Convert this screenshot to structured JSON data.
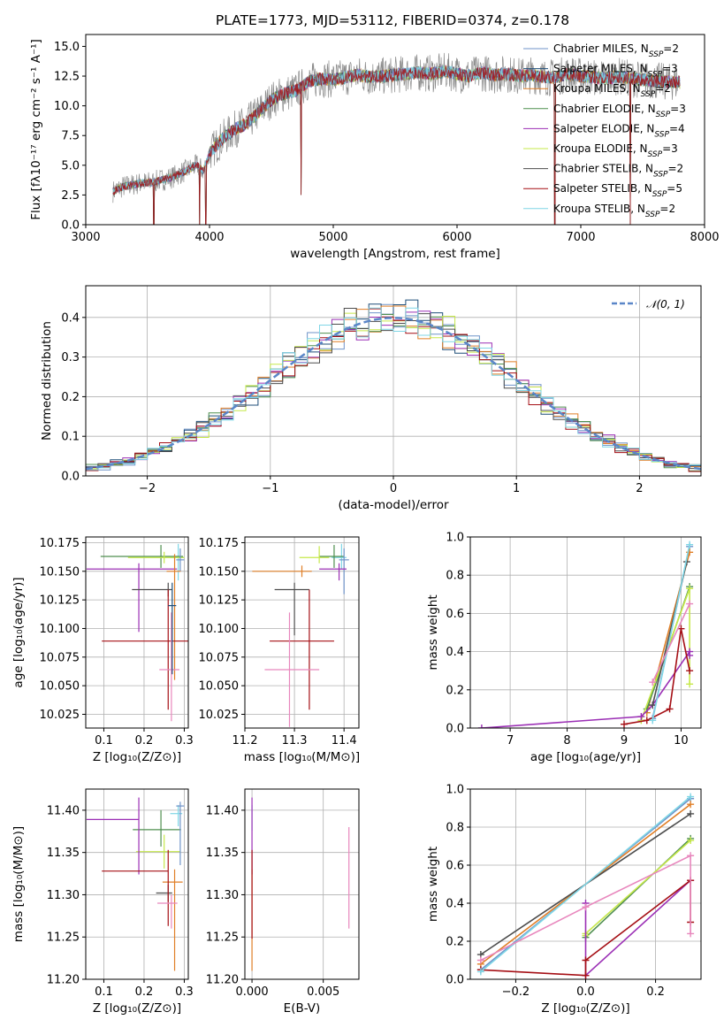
{
  "title": "PLATE=1773, MJD=53112, FIBERID=0374, z=0.178",
  "colors": {
    "Chabrier MILES": "#6f93c9",
    "Salpeter MILES": "#1f4e79",
    "Kroupa MILES": "#e07f27",
    "Chabrier ELODIE": "#4f8f4f",
    "Salpeter ELODIE": "#9b2fb5",
    "Kroupa ELODIE": "#c6e84a",
    "Chabrier STELIB": "#4d4d4d",
    "Salpeter STELIB": "#a50f15",
    "Kroupa STELIB": "#7fd6e6",
    "extra_pink": "#e887bd",
    "normal_curve": "#5a86c8",
    "data_spectrum": "#808080"
  },
  "chart_data": [
    {
      "id": "spectrum",
      "type": "line",
      "title": "PLATE=1773, MJD=53112, FIBERID=0374, z=0.178",
      "xlabel": "wavelength [Angstrom, rest frame]",
      "ylabel": "Flux [fλ10⁻¹⁷ erg cm⁻² s⁻¹ A⁻¹]",
      "xlim": [
        3000,
        8000
      ],
      "ylim": [
        0,
        16
      ],
      "xticks": [
        "3000",
        "4000",
        "5000",
        "6000",
        "7000",
        "8000"
      ],
      "yticks": [
        "0.0",
        "2.5",
        "5.0",
        "7.5",
        "10.0",
        "12.5",
        "15.0"
      ],
      "legend_position": "upper right",
      "legend": [
        {
          "label": "Chabrier MILES, N_SSP=2",
          "color": "Chabrier MILES"
        },
        {
          "label": "Salpeter MILES, N_SSP=3",
          "color": "Salpeter MILES"
        },
        {
          "label": "Kroupa MILES, N_SSP=2",
          "color": "Kroupa MILES"
        },
        {
          "label": "Chabrier ELODIE, N_SSP=3",
          "color": "Chabrier ELODIE"
        },
        {
          "label": "Salpeter ELODIE, N_SSP=4",
          "color": "Salpeter ELODIE"
        },
        {
          "label": "Kroupa ELODIE, N_SSP=3",
          "color": "Kroupa ELODIE"
        },
        {
          "label": "Chabrier STELIB, N_SSP=2",
          "color": "Chabrier STELIB"
        },
        {
          "label": "Salpeter STELIB, N_SSP=5",
          "color": "Salpeter STELIB"
        },
        {
          "label": "Kroupa STELIB, N_SSP=2",
          "color": "Kroupa STELIB"
        }
      ],
      "continuum": {
        "x": [
          3220,
          3300,
          3450,
          3550,
          3700,
          3800,
          3900,
          3950,
          4000,
          4100,
          4200,
          4300,
          4400,
          4500,
          4600,
          4700,
          4800,
          4900,
          5000,
          5100,
          5200,
          5300,
          5400,
          5500,
          5600,
          5700,
          5800,
          5900,
          6000,
          6100,
          6200,
          6300,
          6400,
          6500,
          6600,
          6700,
          6800,
          6900,
          7000,
          7100,
          7200,
          7300,
          7400,
          7500,
          7600,
          7700,
          7800
        ],
        "y": [
          2.8,
          3.2,
          3.5,
          3.6,
          4.0,
          4.5,
          5.0,
          4.5,
          6.0,
          7.2,
          8.0,
          8.5,
          9.5,
          10.5,
          11.0,
          11.3,
          12.0,
          12.3,
          12.2,
          12.4,
          12.6,
          12.4,
          12.5,
          12.6,
          12.7,
          12.8,
          12.7,
          12.9,
          12.7,
          12.5,
          12.8,
          12.6,
          12.7,
          12.5,
          12.6,
          12.4,
          12.4,
          12.7,
          12.5,
          12.4,
          12.3,
          12.5,
          12.3,
          12.2,
          12.1,
          12.0,
          12.0
        ]
      },
      "absorption_dips": [
        {
          "x": 3550,
          "y": 0.0
        },
        {
          "x": 3920,
          "y": 0.0
        },
        {
          "x": 3970,
          "y": 0.0
        },
        {
          "x": 4740,
          "y": 2.5
        },
        {
          "x": 6790,
          "y": 0.0
        },
        {
          "x": 7400,
          "y": 0.0
        }
      ]
    },
    {
      "id": "residuals",
      "type": "line",
      "xlabel": "(data-model)/error",
      "ylabel": "Normed distribution",
      "xlim": [
        -2.5,
        2.5
      ],
      "ylim": [
        0,
        0.48
      ],
      "xticks": [
        "−2",
        "−1",
        "0",
        "1",
        "2"
      ],
      "yticks": [
        "0.0",
        "0.1",
        "0.2",
        "0.3",
        "0.4"
      ],
      "legend_position": "upper right",
      "legend": [
        {
          "label": "𝒩(0, 1)",
          "color": "normal_curve"
        }
      ],
      "bin_width": 0.1,
      "curve": "normal pdf, mean 0, sd 1"
    },
    {
      "id": "age-vs-Z",
      "type": "scatter",
      "xlabel": "Z [log₁₀(Z/Z⊙)]",
      "ylabel": "age  [log₁₀(age/yr)]",
      "xlim": [
        0.055,
        0.31
      ],
      "ylim": [
        10.013,
        10.18
      ],
      "xticks": [
        "0.1",
        "0.2",
        "0.3"
      ],
      "yticks": [
        "10.025",
        "10.050",
        "10.075",
        "10.100",
        "10.125",
        "10.150",
        "10.175"
      ],
      "points": [
        {
          "series": "Kroupa STELIB",
          "x": 0.285,
          "y": 10.162,
          "xerr": [
            0.02,
            0.015
          ],
          "yerr": [
            0.02,
            0.012
          ]
        },
        {
          "series": "Chabrier ELODIE",
          "x": 0.242,
          "y": 10.163,
          "xerr": [
            0.15,
            0.055
          ],
          "yerr": [
            0.01,
            0.01
          ]
        },
        {
          "series": "Kroupa ELODIE",
          "x": 0.25,
          "y": 10.162,
          "xerr": [
            0.09,
            0.05
          ],
          "yerr": [
            0.005,
            0.005
          ]
        },
        {
          "series": "Chabrier MILES",
          "x": 0.29,
          "y": 10.16,
          "xerr": [
            0.01,
            0.01
          ],
          "yerr": [
            0.01,
            0.01
          ]
        },
        {
          "series": "Salpeter ELODIE",
          "x": 0.187,
          "y": 10.152,
          "xerr": [
            0.13,
            0.095
          ],
          "yerr": [
            0.055,
            0.005
          ]
        },
        {
          "series": "Kroupa MILES",
          "x": 0.276,
          "y": 10.15,
          "xerr": [
            0.02,
            0.015
          ],
          "yerr": [
            0.095,
            0.015
          ]
        },
        {
          "series": "Chabrier STELIB",
          "x": 0.26,
          "y": 10.134,
          "xerr": [
            0.09,
            0.01
          ],
          "yerr": [
            0.006,
            0.006
          ]
        },
        {
          "series": "Salpeter STELIB",
          "x": 0.26,
          "y": 10.089,
          "xerr": [
            0.165,
            0.06
          ],
          "yerr": [
            0.06,
            0.045
          ]
        },
        {
          "series": "extra_pink",
          "x": 0.268,
          "y": 10.064,
          "xerr": [
            0.03,
            0.02
          ],
          "yerr": [
            0.045,
            0.05
          ]
        },
        {
          "series": "Salpeter MILES",
          "x": 0.27,
          "y": 10.12,
          "xerr": [
            0.01,
            0.01
          ],
          "yerr": [
            0.06,
            0.02
          ]
        }
      ]
    },
    {
      "id": "age-vs-mass",
      "type": "scatter",
      "xlabel": "mass [log₁₀(M/M⊙)]",
      "xlim": [
        11.2,
        11.43
      ],
      "ylim": [
        10.013,
        10.18
      ],
      "xticks": [
        "11.2",
        "11.3",
        "11.4"
      ],
      "yticks": [
        "10.025",
        "10.050",
        "10.075",
        "10.100",
        "10.125",
        "10.150",
        "10.175"
      ],
      "points": [
        {
          "series": "Kroupa STELIB",
          "x": 11.395,
          "y": 10.162,
          "xerr": [
            0.02,
            0.01
          ],
          "yerr": [
            0.01,
            0.012
          ]
        },
        {
          "series": "Chabrier ELODIE",
          "x": 11.38,
          "y": 10.163,
          "xerr": [
            0.03,
            0.02
          ],
          "yerr": [
            0.01,
            0.01
          ]
        },
        {
          "series": "Kroupa ELODIE",
          "x": 11.35,
          "y": 10.162,
          "xerr": [
            0.04,
            0.02
          ],
          "yerr": [
            0.005,
            0.01
          ]
        },
        {
          "series": "Chabrier MILES",
          "x": 11.4,
          "y": 10.16,
          "xerr": [
            0.01,
            0.01
          ],
          "yerr": [
            0.03,
            0.01
          ]
        },
        {
          "series": "Salpeter ELODIE",
          "x": 11.39,
          "y": 10.152,
          "xerr": [
            0.04,
            0.015
          ],
          "yerr": [
            0.01,
            0.005
          ]
        },
        {
          "series": "Kroupa MILES",
          "x": 11.315,
          "y": 10.15,
          "xerr": [
            0.1,
            0.02
          ],
          "yerr": [
            0.005,
            0.005
          ]
        },
        {
          "series": "Chabrier STELIB",
          "x": 11.3,
          "y": 10.134,
          "xerr": [
            0.04,
            0.03
          ],
          "yerr": [
            0.04,
            0.006
          ]
        },
        {
          "series": "Salpeter STELIB",
          "x": 11.33,
          "y": 10.089,
          "xerr": [
            0.08,
            0.05
          ],
          "yerr": [
            0.06,
            0.045
          ]
        },
        {
          "series": "extra_pink",
          "x": 11.29,
          "y": 10.064,
          "xerr": [
            0.05,
            0.06
          ],
          "yerr": [
            0.05,
            0.05
          ]
        }
      ]
    },
    {
      "id": "weight-vs-age",
      "type": "line",
      "xlabel": "age  [log₁₀(age/yr)]",
      "ylabel": "mass weight",
      "xlim": [
        6.3,
        10.35
      ],
      "ylim": [
        0,
        1
      ],
      "xticks": [
        "7",
        "8",
        "9",
        "10"
      ],
      "yticks": [
        "0.0",
        "0.2",
        "0.4",
        "0.6",
        "0.8",
        "1.0"
      ],
      "series": [
        {
          "name": "Chabrier MILES",
          "x": [
            9.5,
            10.15
          ],
          "y": [
            0.05,
            0.95
          ]
        },
        {
          "name": "Kroupa MILES",
          "x": [
            9.4,
            10.15
          ],
          "y": [
            0.08,
            0.92
          ]
        },
        {
          "name": "Chabrier ELODIE",
          "x": [
            9.4,
            10.15
          ],
          "y": [
            0.1,
            0.74
          ]
        },
        {
          "name": "Kroupa ELODIE",
          "x": [
            9.3,
            10.15,
            10.15
          ],
          "y": [
            0.04,
            0.73,
            0.23
          ]
        },
        {
          "name": "Salpeter ELODIE",
          "x": [
            6.5,
            9.3,
            9.5,
            10.15,
            10.15
          ],
          "y": [
            0.0,
            0.06,
            0.12,
            0.4,
            0.38
          ]
        },
        {
          "name": "Chabrier STELIB",
          "x": [
            9.5,
            10.1
          ],
          "y": [
            0.12,
            0.87
          ]
        },
        {
          "name": "Salpeter STELIB",
          "x": [
            9.0,
            9.4,
            9.8,
            10.0,
            10.15
          ],
          "y": [
            0.02,
            0.04,
            0.1,
            0.52,
            0.3
          ]
        },
        {
          "name": "Kroupa STELIB",
          "x": [
            9.5,
            10.15
          ],
          "y": [
            0.04,
            0.96
          ]
        },
        {
          "name": "extra_pink",
          "x": [
            9.5,
            10.15
          ],
          "y": [
            0.24,
            0.65
          ]
        }
      ]
    },
    {
      "id": "mass-vs-Z",
      "type": "scatter",
      "xlabel": "Z [log₁₀(Z/Z⊙)]",
      "ylabel": "mass [log₁₀(M/M⊙)]",
      "xlim": [
        0.055,
        0.31
      ],
      "ylim": [
        11.2,
        11.425
      ],
      "xticks": [
        "0.1",
        "0.2",
        "0.3"
      ],
      "yticks": [
        "11.20",
        "11.25",
        "11.30",
        "11.35",
        "11.40"
      ],
      "points": [
        {
          "series": "Kroupa STELIB",
          "x": 0.285,
          "y": 11.396,
          "xerr": [
            0.02,
            0.01
          ],
          "yerr": [
            0.015,
            0.01
          ]
        },
        {
          "series": "Chabrier ELODIE",
          "x": 0.242,
          "y": 11.377,
          "xerr": [
            0.07,
            0.05
          ],
          "yerr": [
            0.02,
            0.023
          ]
        },
        {
          "series": "Kroupa ELODIE",
          "x": 0.25,
          "y": 11.351,
          "xerr": [
            0.07,
            0.04
          ],
          "yerr": [
            0.02,
            0.02
          ]
        },
        {
          "series": "Chabrier MILES",
          "x": 0.29,
          "y": 11.405,
          "xerr": [
            0.01,
            0.01
          ],
          "yerr": [
            0.07,
            0.005
          ]
        },
        {
          "series": "Salpeter ELODIE",
          "x": 0.187,
          "y": 11.389,
          "xerr": [
            0.13,
            0.0
          ],
          "yerr": [
            0.065,
            0.026
          ]
        },
        {
          "series": "Kroupa MILES",
          "x": 0.276,
          "y": 11.315,
          "xerr": [
            0.03,
            0.02
          ],
          "yerr": [
            0.105,
            0.015
          ]
        },
        {
          "series": "Chabrier STELIB",
          "x": 0.26,
          "y": 11.302,
          "xerr": [
            0.03,
            0.01
          ],
          "yerr": [
            0.01,
            0.01
          ]
        },
        {
          "series": "Salpeter STELIB",
          "x": 0.26,
          "y": 11.328,
          "xerr": [
            0.165,
            0.0
          ],
          "yerr": [
            0.065,
            0.025
          ]
        },
        {
          "series": "extra_pink",
          "x": 0.268,
          "y": 11.29,
          "xerr": [
            0.035,
            0.015
          ],
          "yerr": [
            0.03,
            0.01
          ]
        }
      ]
    },
    {
      "id": "mass-vs-EBV",
      "type": "scatter",
      "xlabel": "E(B-V)",
      "xlim": [
        -0.0005,
        0.0075
      ],
      "ylim": [
        11.2,
        11.425
      ],
      "xticks": [
        "0.000",
        "0.005"
      ],
      "yticks": [
        "11.20",
        "11.25",
        "11.30",
        "11.35",
        "11.40"
      ],
      "points": [
        {
          "series": "Kroupa STELIB",
          "x": 0.0,
          "y": 11.396,
          "yerr": [
            0.02,
            0.01
          ]
        },
        {
          "series": "Salpeter ELODIE",
          "x": 0.0,
          "y": 11.389,
          "yerr": [
            0.065,
            0.026
          ]
        },
        {
          "series": "Kroupa MILES",
          "x": 0.0,
          "y": 11.315,
          "yerr": [
            0.105,
            0.015
          ]
        },
        {
          "series": "Salpeter STELIB",
          "x": 0.0,
          "y": 11.328,
          "yerr": [
            0.08,
            0.025
          ]
        },
        {
          "series": "extra_pink",
          "x": 0.0068,
          "y": 11.32,
          "yerr": [
            0.06,
            0.06
          ]
        }
      ]
    },
    {
      "id": "weight-vs-Z",
      "type": "line",
      "xlabel": "Z [log₁₀(Z/Z⊙)]",
      "ylabel": "mass weight",
      "xlim": [
        -0.33,
        0.33
      ],
      "ylim": [
        0,
        1
      ],
      "xticks": [
        "−0.2",
        "0.0",
        "0.2"
      ],
      "yticks": [
        "0.0",
        "0.2",
        "0.4",
        "0.6",
        "0.8",
        "1.0"
      ],
      "series": [
        {
          "name": "Chabrier MILES",
          "x": [
            -0.3,
            0.3
          ],
          "y": [
            0.05,
            0.95
          ]
        },
        {
          "name": "Kroupa MILES",
          "x": [
            -0.3,
            0.3
          ],
          "y": [
            0.08,
            0.92
          ]
        },
        {
          "name": "Chabrier ELODIE",
          "x": [
            0.0,
            0.3
          ],
          "y": [
            0.22,
            0.74
          ]
        },
        {
          "name": "Kroupa ELODIE",
          "x": [
            0.0,
            0.0,
            0.3
          ],
          "y": [
            0.23,
            0.24,
            0.73
          ]
        },
        {
          "name": "Salpeter ELODIE",
          "x": [
            0.0,
            0.0,
            0.3
          ],
          "y": [
            0.4,
            0.02,
            0.52
          ]
        },
        {
          "name": "Chabrier STELIB",
          "x": [
            -0.3,
            0.3
          ],
          "y": [
            0.13,
            0.87
          ]
        },
        {
          "name": "Salpeter STELIB",
          "x": [
            -0.3,
            0.0,
            0.0,
            0.3,
            0.3
          ],
          "y": [
            0.05,
            0.02,
            0.1,
            0.52,
            0.3
          ]
        },
        {
          "name": "Kroupa STELIB",
          "x": [
            -0.3,
            0.3
          ],
          "y": [
            0.04,
            0.96
          ]
        },
        {
          "name": "extra_pink",
          "x": [
            -0.3,
            0.0,
            0.3,
            0.3
          ],
          "y": [
            0.1,
            0.38,
            0.65,
            0.24
          ]
        }
      ]
    }
  ]
}
